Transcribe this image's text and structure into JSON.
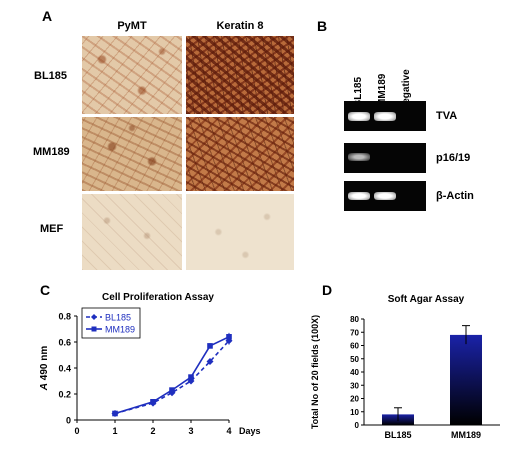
{
  "figure": {
    "panels": {
      "a": {
        "letter": "A",
        "columns": [
          "PyMT",
          "Keratin 8"
        ],
        "rows": [
          "BL185",
          "MM189",
          "MEF"
        ]
      },
      "b": {
        "letter": "B",
        "lanes": [
          "BL185",
          "MM189",
          "Negative"
        ],
        "bands": [
          "TVA",
          "p16/19",
          "β-Actin"
        ]
      },
      "c": {
        "letter": "C"
      },
      "d": {
        "letter": "D"
      }
    }
  },
  "chart_data": [
    {
      "type": "line",
      "title": "Cell Proliferation Assay",
      "xlabel": "Days",
      "ylabel_italic": "A",
      "ylabel_rest": " 490 nm",
      "xlim": [
        0,
        4
      ],
      "ylim": [
        0,
        0.8
      ],
      "xticks": [
        "0",
        "1",
        "2",
        "3",
        "4"
      ],
      "yticks": [
        "0",
        "0.2",
        "0.4",
        "0.6",
        "0.8"
      ],
      "grid": false,
      "legend_position": "top-left",
      "series": [
        {
          "name": "BL185",
          "style": "dashed",
          "marker": "diamond",
          "color": "#1f2fbf",
          "x": [
            1,
            2,
            2.5,
            3,
            3.5,
            4
          ],
          "y": [
            0.05,
            0.13,
            0.21,
            0.3,
            0.45,
            0.61
          ],
          "err": [
            0.01,
            0.01,
            0.02,
            0.02,
            0.02,
            0.03
          ]
        },
        {
          "name": "MM189",
          "style": "solid",
          "marker": "square",
          "color": "#1f2fbf",
          "x": [
            1,
            2,
            2.5,
            3,
            3.5,
            4
          ],
          "y": [
            0.05,
            0.14,
            0.23,
            0.33,
            0.57,
            0.64
          ],
          "err": [
            0.01,
            0.01,
            0.02,
            0.02,
            0.02,
            0.03
          ]
        }
      ]
    },
    {
      "type": "bar",
      "title": "Soft Agar Assay",
      "categories": [
        "BL185",
        "MM189"
      ],
      "values": [
        8,
        68
      ],
      "errors": [
        5,
        7
      ],
      "ylabel": "Total No of 20 fields (100X)",
      "ylim": [
        0,
        80
      ],
      "yticks": [
        "0",
        "10",
        "20",
        "30",
        "40",
        "50",
        "60",
        "70",
        "80"
      ],
      "bar_color_top": "#1a22a8",
      "bar_color_bottom": "#000000"
    }
  ]
}
